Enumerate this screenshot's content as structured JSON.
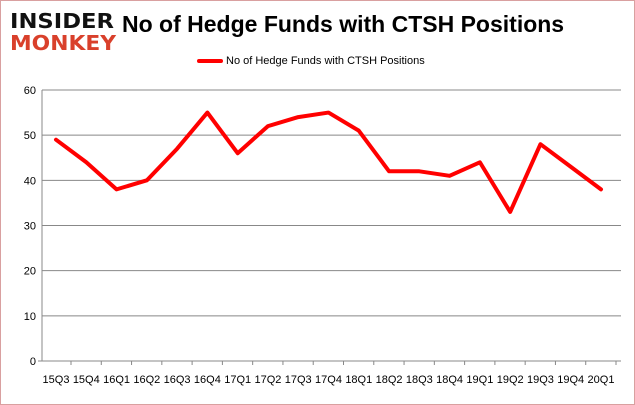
{
  "logo": {
    "line1": "INSIDER",
    "line2": "MONKEY"
  },
  "chart_data": {
    "type": "line",
    "title": "No of Hedge Funds with CTSH Positions",
    "xlabel": "",
    "ylabel": "",
    "categories": [
      "15Q3",
      "15Q4",
      "16Q1",
      "16Q2",
      "16Q3",
      "16Q4",
      "17Q1",
      "17Q2",
      "17Q3",
      "17Q4",
      "18Q1",
      "18Q2",
      "18Q3",
      "18Q4",
      "19Q1",
      "19Q2",
      "19Q3",
      "19Q4",
      "20Q1"
    ],
    "series": [
      {
        "name": "No of Hedge Funds with CTSH Positions",
        "color": "#ff0000",
        "values": [
          49,
          44,
          38,
          40,
          47,
          55,
          46,
          52,
          54,
          55,
          51,
          42,
          42,
          41,
          44,
          33,
          48,
          43,
          38
        ]
      }
    ],
    "ylim": [
      0,
      60
    ],
    "yticks": [
      0,
      10,
      20,
      30,
      40,
      50,
      60
    ],
    "grid": true,
    "legend": "top-center"
  }
}
